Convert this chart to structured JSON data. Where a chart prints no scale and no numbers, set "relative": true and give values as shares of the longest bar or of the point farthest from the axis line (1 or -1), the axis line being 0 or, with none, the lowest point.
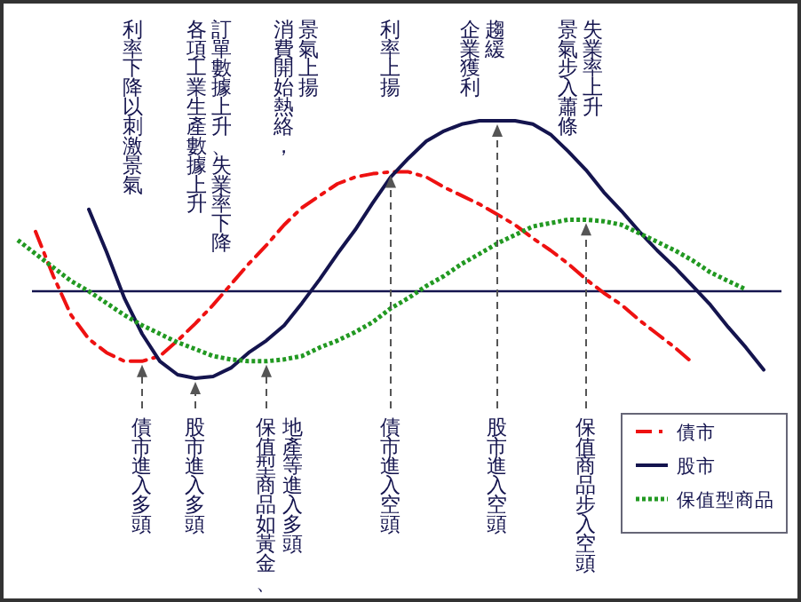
{
  "chart_data": {
    "type": "line",
    "relative": true,
    "categories": [
      null,
      null,
      null,
      null,
      null,
      null,
      null,
      null,
      null,
      null,
      null,
      null,
      null,
      null,
      null,
      null,
      null,
      null,
      null,
      null,
      null,
      null,
      null,
      null,
      null,
      null,
      null,
      null,
      null,
      null,
      null,
      null,
      null,
      null,
      null,
      null,
      null,
      null,
      null,
      null,
      null,
      null,
      null
    ],
    "series": [
      {
        "name": "債市",
        "color": "#ee1111",
        "line_style": "dashed",
        "values": [
          null,
          0.35,
          0.09,
          -0.14,
          -0.28,
          -0.36,
          -0.41,
          -0.41,
          -0.38,
          -0.29,
          -0.19,
          -0.08,
          0.04,
          0.16,
          0.27,
          0.39,
          0.49,
          0.56,
          0.63,
          0.67,
          0.69,
          0.7,
          0.7,
          0.67,
          0.61,
          0.56,
          0.51,
          0.45,
          0.39,
          0.31,
          0.24,
          0.16,
          0.07,
          -0.01,
          -0.08,
          -0.17,
          -0.25,
          -0.33,
          -0.42,
          null,
          null,
          null,
          null
        ]
      },
      {
        "name": "股市",
        "color": "#14144e",
        "line_style": "solid",
        "values": [
          null,
          null,
          null,
          null,
          0.48,
          0.23,
          -0.04,
          -0.25,
          -0.41,
          -0.49,
          -0.51,
          -0.5,
          -0.45,
          -0.36,
          -0.29,
          -0.2,
          -0.07,
          0.07,
          0.22,
          0.36,
          0.52,
          0.67,
          0.78,
          0.88,
          0.94,
          0.98,
          1,
          1,
          1,
          0.98,
          0.92,
          0.82,
          0.71,
          0.58,
          0.47,
          0.35,
          0.24,
          0.14,
          0.03,
          -0.08,
          -0.21,
          -0.33,
          -0.46
        ]
      },
      {
        "name": "保值型商品",
        "color": "#229922",
        "line_style": "dotted",
        "values": [
          0.3,
          0.22,
          0.14,
          0.06,
          0,
          -0.07,
          -0.14,
          -0.2,
          -0.25,
          -0.3,
          -0.34,
          -0.38,
          -0.4,
          -0.41,
          -0.41,
          -0.4,
          -0.38,
          -0.33,
          -0.29,
          -0.24,
          -0.18,
          -0.1,
          -0.04,
          0.03,
          0.09,
          0.16,
          0.22,
          0.28,
          0.33,
          0.38,
          0.4,
          0.42,
          0.42,
          0.41,
          0.39,
          0.34,
          0.29,
          0.24,
          0.18,
          0.11,
          0.06,
          0.01,
          null
        ]
      }
    ],
    "annotations": [
      "利率下降以刺激景氣",
      "訂單數據上升、失業率下降",
      "各項工業生產數據上升",
      "景氣上揚",
      "消費開始熱絡，",
      "利率上揚",
      "趨緩",
      "企業獲利",
      "失業率上升",
      "景氣步入蕭條",
      "債市進入多頭",
      "股市進入多頭",
      "地產等進入多頭",
      "保值型商品如黃金、",
      "債市進入空頭",
      "股市進入空頭",
      "保值商品步入空頭"
    ],
    "legend": "bottom right"
  }
}
